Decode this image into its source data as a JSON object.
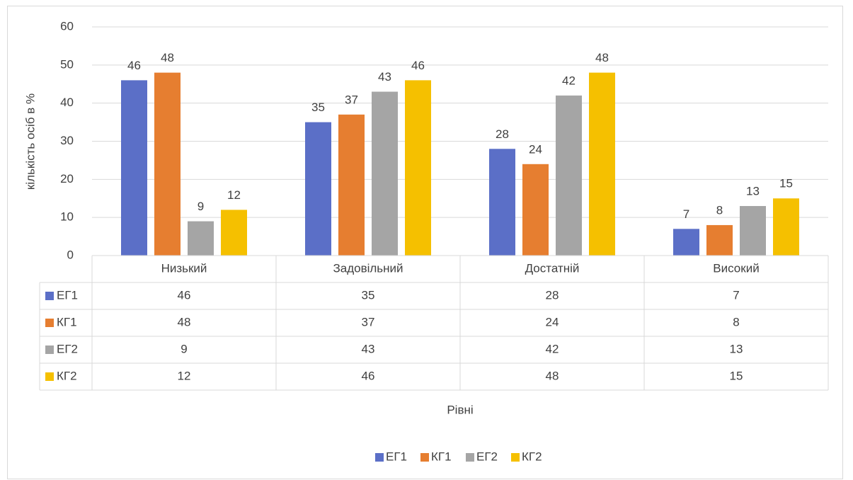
{
  "chart_data": {
    "type": "bar",
    "x_label": "Рівні",
    "y_label": "кількість осіб в %",
    "categories": [
      "Низький",
      "Задовільний",
      "Достатній",
      "Високий"
    ],
    "series": [
      {
        "name": "ЕГ1",
        "color": "#5b6fc7",
        "values": [
          46,
          35,
          28,
          7
        ]
      },
      {
        "name": "КГ1",
        "color": "#e67e30",
        "values": [
          48,
          37,
          24,
          8
        ]
      },
      {
        "name": "ЕГ2",
        "color": "#a5a5a5",
        "values": [
          9,
          43,
          42,
          13
        ]
      },
      {
        "name": "КГ2",
        "color": "#f5c000",
        "values": [
          12,
          46,
          48,
          15
        ]
      }
    ],
    "ylim": [
      0,
      60
    ],
    "yticks": [
      0,
      10,
      20,
      30,
      40,
      50,
      60
    ],
    "grid": true,
    "data_table": true,
    "legend": "bottom"
  }
}
